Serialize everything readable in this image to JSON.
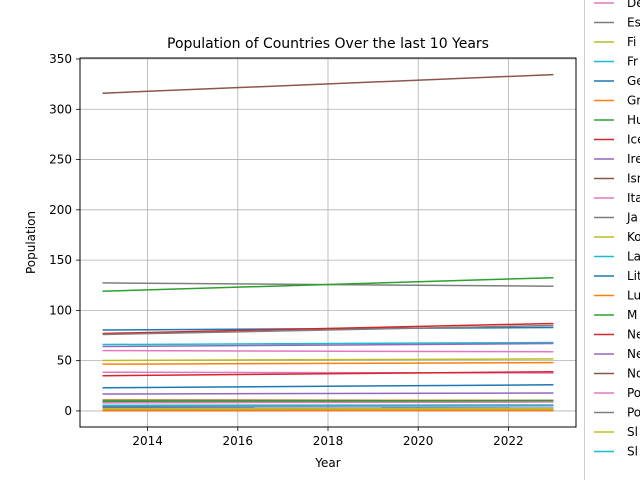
{
  "chart_data": {
    "type": "line",
    "title": "Population of Countries Over the last 10 Years",
    "xlabel": "Year",
    "ylabel": "Population",
    "xlim": [
      2012.5,
      2023.5
    ],
    "ylim": [
      -16,
      351
    ],
    "xticks": [
      2014,
      2016,
      2018,
      2020,
      2022
    ],
    "yticks": [
      0,
      50,
      100,
      150,
      200,
      250,
      300,
      350
    ],
    "grid": true,
    "legend_position": "right, outside plot (clipped)",
    "x": [
      2013,
      2023
    ],
    "series": [
      {
        "name": "De",
        "color": "#e377c2",
        "values": [
          5.6,
          5.9
        ]
      },
      {
        "name": "Es",
        "color": "#7f7f7f",
        "values": [
          1.3,
          1.4
        ]
      },
      {
        "name": "Fi",
        "color": "#bcbd22",
        "values": [
          5.4,
          5.6
        ]
      },
      {
        "name": "Fr",
        "color": "#17becf",
        "values": [
          66,
          68
        ]
      },
      {
        "name": "Ge",
        "color": "#1f77b4",
        "values": [
          80.5,
          83
        ]
      },
      {
        "name": "Gr",
        "color": "#ff7f0e",
        "values": [
          11,
          10.4
        ]
      },
      {
        "name": "Hu",
        "color": "#2ca02c",
        "values": [
          9.9,
          9.6
        ]
      },
      {
        "name": "Ice",
        "color": "#d62728",
        "values": [
          0.3,
          0.4
        ]
      },
      {
        "name": "Ire",
        "color": "#9467bd",
        "values": [
          4.6,
          5.1
        ]
      },
      {
        "name": "Isr",
        "color": "#8c564b",
        "values": [
          8,
          9.8
        ]
      },
      {
        "name": "Ita",
        "color": "#e377c2",
        "values": [
          60,
          58.8
        ]
      },
      {
        "name": "Ja",
        "color": "#7f7f7f",
        "values": [
          127.3,
          124
        ]
      },
      {
        "name": "Ko",
        "color": "#bcbd22",
        "values": [
          50.2,
          51.7
        ]
      },
      {
        "name": "La",
        "color": "#17becf",
        "values": [
          2,
          1.8
        ]
      },
      {
        "name": "Lit",
        "color": "#1f77b4",
        "values": [
          3,
          2.8
        ]
      },
      {
        "name": "Lu",
        "color": "#ff7f0e",
        "values": [
          0.5,
          0.7
        ]
      },
      {
        "name": "M",
        "color": "#2ca02c",
        "values": [
          119,
          132.5
        ]
      },
      {
        "name": "Ne",
        "color": "#d62728",
        "values": [
          77,
          87
        ]
      },
      {
        "name": "Ne",
        "color": "#9467bd",
        "values": [
          16.8,
          17.8
        ]
      },
      {
        "name": "No",
        "color": "#8c564b",
        "values": [
          5.1,
          5.5
        ]
      },
      {
        "name": "Po",
        "color": "#e377c2",
        "values": [
          38.5,
          37.7
        ]
      },
      {
        "name": "Po",
        "color": "#7f7f7f",
        "values": [
          10.5,
          10.3
        ]
      },
      {
        "name": "Sl",
        "color": "#bcbd22",
        "values": [
          2.1,
          2.1
        ]
      },
      {
        "name": "Sl",
        "color": "#17becf",
        "values": [
          5.4,
          5.4
        ]
      },
      {
        "name": "",
        "color": "#1f77b4",
        "values": [
          23,
          26
        ]
      },
      {
        "name": "",
        "color": "#ff7f0e",
        "values": [
          46.5,
          48
        ]
      },
      {
        "name": "",
        "color": "#2ca02c",
        "values": [
          9.6,
          10.5
        ]
      },
      {
        "name": "",
        "color": "#d62728",
        "values": [
          35,
          39
        ]
      },
      {
        "name": "",
        "color": "#9467bd",
        "values": [
          64,
          67
        ]
      },
      {
        "name": "",
        "color": "#8c564b",
        "values": [
          316,
          334.5
        ]
      },
      {
        "name": "",
        "color": "#e377c2",
        "values": [
          8.1,
          8.8
        ]
      },
      {
        "name": "",
        "color": "#7f7f7f",
        "values": [
          76,
          85
        ]
      }
    ]
  }
}
